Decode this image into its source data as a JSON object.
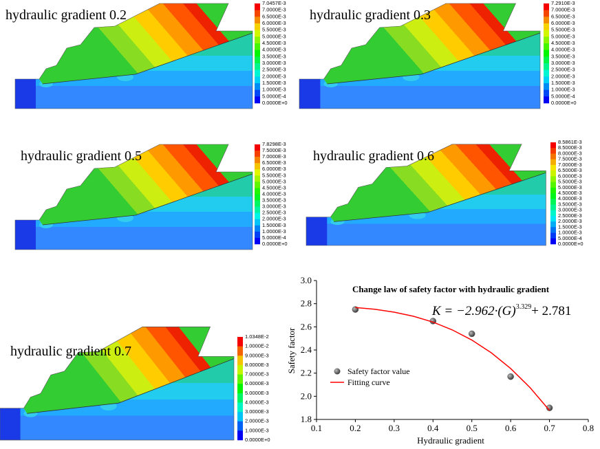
{
  "panels": [
    {
      "title": "hydraulic gradient 0.2",
      "legend": [
        "7.0457E-3",
        "7.0000E-3",
        "6.5000E-3",
        "6.0000E-3",
        "5.5000E-3",
        "5.0000E-3",
        "4.5000E-3",
        "4.0000E-3",
        "3.5000E-3",
        "3.0000E-3",
        "2.5000E-3",
        "2.0000E-3",
        "1.5000E-3",
        "1.0000E-3",
        "5.0000E-4",
        "0.0000E+0"
      ]
    },
    {
      "title": "hydraulic gradient 0.3",
      "legend": [
        "7.2910E-3",
        "7.0000E-3",
        "6.5000E-3",
        "6.0000E-3",
        "5.5000E-3",
        "5.0000E-3",
        "4.5000E-3",
        "4.0000E-3",
        "3.5000E-3",
        "3.0000E-3",
        "2.5000E-3",
        "2.0000E-3",
        "1.5000E-3",
        "1.0000E-3",
        "5.0000E-4",
        "0.0000E+0"
      ]
    },
    {
      "title": "hydraulic gradient 0.5",
      "legend": [
        "7.8298E-3",
        "7.5000E-3",
        "7.0000E-3",
        "6.5000E-3",
        "6.0000E-3",
        "5.5000E-3",
        "5.0000E-3",
        "4.5000E-3",
        "4.0000E-3",
        "3.5000E-3",
        "3.0000E-3",
        "2.5000E-3",
        "2.0000E-3",
        "1.5000E-3",
        "1.0000E-3",
        "5.0000E-4",
        "0.0000E+0"
      ]
    },
    {
      "title": "hydraulic gradient 0.6",
      "legend": [
        "8.5861E-3",
        "8.5000E-3",
        "8.0000E-3",
        "7.5000E-3",
        "7.0000E-3",
        "6.5000E-3",
        "6.0000E-3",
        "5.5000E-3",
        "5.0000E-3",
        "4.5000E-3",
        "4.0000E-3",
        "3.5000E-3",
        "3.0000E-3",
        "2.5000E-3",
        "2.0000E-3",
        "1.5000E-3",
        "1.0000E-3",
        "5.0000E-4",
        "0.0000E+0"
      ]
    },
    {
      "title": "hydraulic gradient 0.7",
      "legend": [
        "1.0348E-2",
        "1.0000E-2",
        "9.0000E-3",
        "8.0000E-3",
        "7.0000E-3",
        "6.0000E-3",
        "5.0000E-3",
        "4.0000E-3",
        "3.0000E-3",
        "2.0000E-3",
        "1.0000E-3",
        "0.0000E+0"
      ]
    }
  ],
  "chart_data": {
    "type": "scatter",
    "title": "Change law of safety factor with hydraulic gradient",
    "equation": {
      "lhs": "K = −2.962·(G)",
      "exponent": "3.329",
      "rhs": "+ 2.781"
    },
    "x_label": "Hydraulic gradient",
    "y_label": "Safety factor",
    "series": [
      {
        "name": "Safety factor value",
        "color": "#555555",
        "x": [
          0.2,
          0.4,
          0.5,
          0.6,
          0.7
        ],
        "values": [
          2.75,
          2.65,
          2.54,
          2.17,
          1.9
        ]
      },
      {
        "name": "Fitting curve",
        "color": "#ff0000",
        "x": [
          0.2,
          0.25,
          0.3,
          0.35,
          0.4,
          0.45,
          0.5,
          0.55,
          0.6,
          0.65,
          0.7
        ],
        "values": [
          2.767,
          2.752,
          2.727,
          2.691,
          2.641,
          2.573,
          2.486,
          2.376,
          2.24,
          2.075,
          1.878
        ]
      }
    ],
    "xlim": [
      0.1,
      0.8
    ],
    "xticks": [
      0.1,
      0.2,
      0.3,
      0.4,
      0.5,
      0.6,
      0.7,
      0.8
    ],
    "ylim": [
      1.8,
      3.0
    ],
    "yticks": [
      1.8,
      {
        "value": 2,
        "label": "2.0"
      },
      2.2,
      2.4,
      2.6,
      2.8,
      {
        "value": 3,
        "label": "3.0"
      }
    ]
  }
}
